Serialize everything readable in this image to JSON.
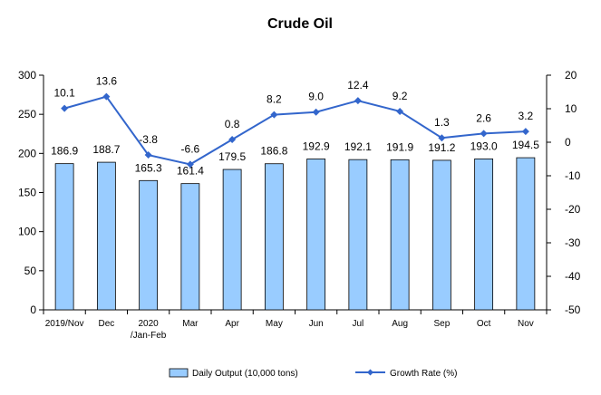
{
  "chart_data": {
    "type": "bar",
    "title": "Crude Oil",
    "categories": [
      "2019/Nov",
      "Dec",
      "2020\n/Jan-Feb",
      "Mar",
      "Apr",
      "May",
      "Jun",
      "Jul",
      "Aug",
      "Sep",
      "Oct",
      "Nov"
    ],
    "series": [
      {
        "name": "Daily Output (10,000 tons)",
        "type": "bar",
        "axis": "left",
        "values": [
          186.9,
          188.7,
          165.3,
          161.4,
          179.5,
          186.8,
          192.9,
          192.1,
          191.9,
          191.2,
          193.0,
          194.5
        ],
        "labels": [
          "186.9",
          "188.7",
          "165.3",
          "161.4",
          "179.5",
          "186.8",
          "192.9",
          "192.1",
          "191.9",
          "191.2",
          "193.0",
          "194.5"
        ],
        "color": "#99ccff"
      },
      {
        "name": "Growth Rate (%)",
        "type": "line",
        "axis": "right",
        "values": [
          10.1,
          13.6,
          -3.8,
          -6.6,
          0.8,
          8.2,
          9.0,
          12.4,
          9.2,
          1.3,
          2.6,
          3.2
        ],
        "labels": [
          "10.1",
          "13.6",
          "-3.8",
          "-6.6",
          "0.8",
          "8.2",
          "9.0",
          "12.4",
          "9.2",
          "1.3",
          "2.6",
          "3.2"
        ],
        "color": "#3366cc"
      }
    ],
    "y_left": {
      "ylim": [
        0,
        300
      ],
      "ticks": [
        "0",
        "50",
        "100",
        "150",
        "200",
        "250",
        "300"
      ]
    },
    "y_right": {
      "ylim": [
        -50,
        20
      ],
      "ticks": [
        "-50",
        "-40",
        "-30",
        "-20",
        "-10",
        "0",
        "10",
        "20"
      ]
    },
    "grid": false,
    "legend": "bottom"
  }
}
